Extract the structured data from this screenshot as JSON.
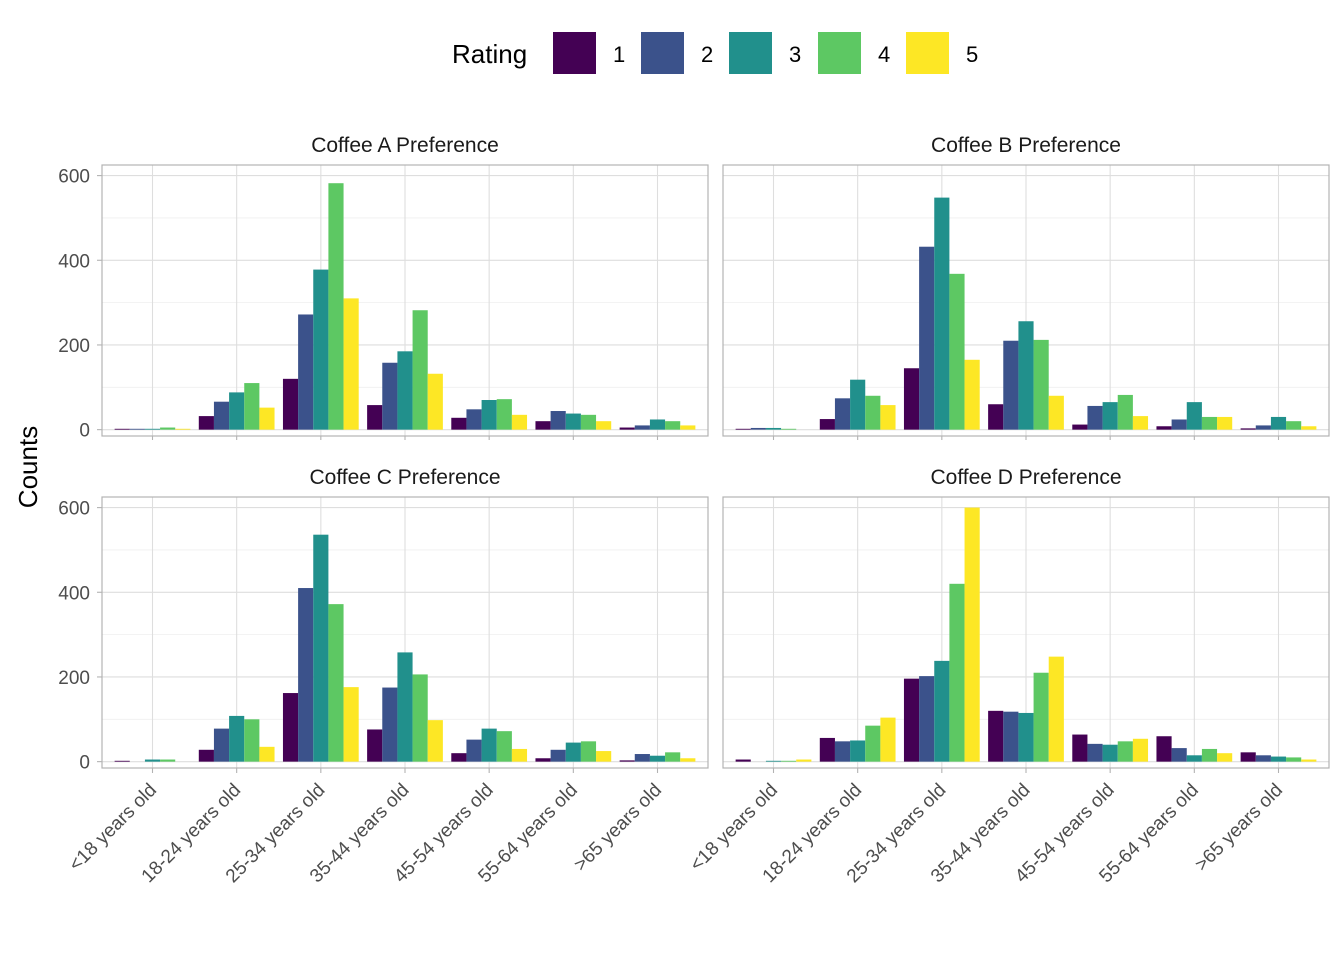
{
  "chart_data": {
    "type": "bar",
    "ylabel": "Counts",
    "xlabel": "",
    "ylim": [
      0,
      625
    ],
    "y_ticks": [
      0,
      200,
      400,
      600
    ],
    "grid": true,
    "legend": {
      "title": "Rating",
      "position": "top",
      "entries": [
        "1",
        "2",
        "3",
        "4",
        "5"
      ],
      "colors": [
        "#440154",
        "#3B528B",
        "#21908C",
        "#5DC863",
        "#FDE725"
      ]
    },
    "categories": [
      "<18 years old",
      "18-24 years old",
      "25-34 years old",
      "35-44 years old",
      "45-54 years old",
      "55-64 years old",
      ">65 years old"
    ],
    "panels": [
      {
        "title": "Coffee A Preference",
        "values": [
          [
            2,
            2,
            2,
            5,
            2
          ],
          [
            32,
            66,
            88,
            110,
            52
          ],
          [
            120,
            272,
            378,
            582,
            310
          ],
          [
            58,
            158,
            185,
            282,
            132
          ],
          [
            28,
            48,
            70,
            72,
            35
          ],
          [
            20,
            44,
            38,
            35,
            20
          ],
          [
            5,
            10,
            24,
            20,
            10
          ]
        ]
      },
      {
        "title": "Coffee B Preference",
        "values": [
          [
            2,
            4,
            4,
            2,
            0
          ],
          [
            25,
            74,
            118,
            80,
            58
          ],
          [
            145,
            432,
            548,
            368,
            165
          ],
          [
            60,
            210,
            256,
            212,
            80
          ],
          [
            12,
            56,
            65,
            82,
            32
          ],
          [
            8,
            24,
            65,
            30,
            30
          ],
          [
            3,
            10,
            30,
            20,
            8
          ]
        ]
      },
      {
        "title": "Coffee C Preference",
        "values": [
          [
            2,
            0,
            5,
            5,
            0
          ],
          [
            28,
            78,
            108,
            100,
            35
          ],
          [
            162,
            410,
            536,
            372,
            176
          ],
          [
            76,
            175,
            258,
            206,
            98
          ],
          [
            20,
            52,
            78,
            72,
            30
          ],
          [
            8,
            28,
            45,
            48,
            25
          ],
          [
            3,
            18,
            14,
            22,
            8
          ]
        ]
      },
      {
        "title": "Coffee D Preference",
        "values": [
          [
            5,
            0,
            2,
            2,
            5
          ],
          [
            56,
            48,
            50,
            85,
            104
          ],
          [
            196,
            202,
            238,
            420,
            600
          ],
          [
            120,
            118,
            115,
            210,
            248
          ],
          [
            64,
            42,
            40,
            48,
            54
          ],
          [
            60,
            32,
            15,
            30,
            20
          ],
          [
            22,
            15,
            12,
            10,
            5
          ]
        ]
      }
    ]
  }
}
